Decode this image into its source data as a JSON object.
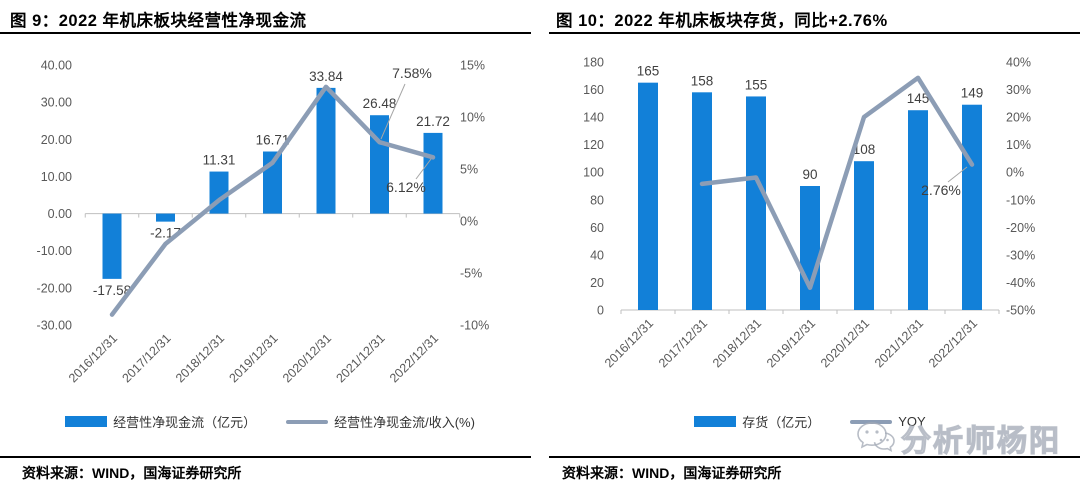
{
  "watermark": {
    "text": "分析师杨阳",
    "icon": "wechat-icon",
    "color": "#a6acb8"
  },
  "colors": {
    "bar_blue": "#1280d8",
    "line_gray": "#8c9db5",
    "axis_text": "#595959",
    "rule_black": "#000000"
  },
  "figures": [
    {
      "title": "图 9：2022 年机床板块经营性净现金流",
      "source": "资料来源：WIND，国海证券研究所",
      "legend": [
        {
          "label": "经营性净现金流（亿元）",
          "marker": "bar",
          "color": "#1280d8"
        },
        {
          "label": "经营性净现金流/收入(%)",
          "marker": "line",
          "color": "#8c9db5"
        }
      ],
      "chart_data": {
        "type": "bar+line",
        "categories": [
          "2016/12/31",
          "2017/12/31",
          "2018/12/31",
          "2019/12/31",
          "2020/12/31",
          "2021/12/31",
          "2022/12/31"
        ],
        "series": [
          {
            "name": "经营性净现金流（亿元）",
            "type": "bar",
            "axis": "left",
            "color": "#1280d8",
            "values": [
              -17.58,
              -2.17,
              11.31,
              16.71,
              33.84,
              26.48,
              21.72
            ],
            "labels": [
              "-17.58",
              "-2.17",
              "11.31",
              "16.71",
              "33.84",
              "26.48",
              "21.72"
            ]
          },
          {
            "name": "经营性净现金流/收入(%)",
            "type": "line",
            "axis": "right",
            "color": "#8c9db5",
            "values": [
              -9.0,
              -2.2,
              2.0,
              5.6,
              12.9,
              7.58,
              6.12
            ]
          }
        ],
        "left_axis": {
          "min": -30,
          "max": 40,
          "ticks": [
            "40.00",
            "30.00",
            "20.00",
            "10.00",
            "0.00",
            "-10.00",
            "-20.00",
            "-30.00"
          ]
        },
        "right_axis": {
          "min": -10,
          "max": 15,
          "ticks": [
            "15%",
            "10%",
            "5%",
            "0%",
            "-5%",
            "-10%"
          ]
        },
        "annotations": [
          {
            "text": "7.58%"
          },
          {
            "text": "6.12%"
          }
        ],
        "grid": false,
        "legend_position": "bottom"
      }
    },
    {
      "title": "图 10：2022 年机床板块存货，同比+2.76%",
      "source": "资料来源：WIND，国海证券研究所",
      "legend": [
        {
          "label": "存货（亿元）",
          "marker": "bar",
          "color": "#1280d8"
        },
        {
          "label": "YOY",
          "marker": "line",
          "color": "#8c9db5"
        }
      ],
      "chart_data": {
        "type": "bar+line",
        "categories": [
          "2016/12/31",
          "2017/12/31",
          "2018/12/31",
          "2019/12/31",
          "2020/12/31",
          "2021/12/31",
          "2022/12/31"
        ],
        "series": [
          {
            "name": "存货（亿元）",
            "type": "bar",
            "axis": "left",
            "color": "#1280d8",
            "values": [
              165,
              158,
              155,
              90,
              108,
              145,
              149
            ],
            "labels": [
              "165",
              "158",
              "155",
              "90",
              "108",
              "145",
              "149"
            ]
          },
          {
            "name": "YOY",
            "type": "line",
            "axis": "right",
            "color": "#8c9db5",
            "values": [
              null,
              -4.24,
              -1.9,
              -41.94,
              20.0,
              34.26,
              2.76
            ]
          }
        ],
        "left_axis": {
          "min": 0,
          "max": 180,
          "ticks": [
            "180",
            "160",
            "140",
            "120",
            "100",
            "80",
            "60",
            "40",
            "20",
            "0"
          ]
        },
        "right_axis": {
          "min": -50,
          "max": 40,
          "ticks": [
            "40%",
            "30%",
            "20%",
            "10%",
            "0%",
            "-10%",
            "-20%",
            "-30%",
            "-40%",
            "-50%"
          ]
        },
        "annotations": [
          {
            "text": "2.76%"
          }
        ],
        "grid": false,
        "legend_position": "bottom"
      }
    }
  ]
}
